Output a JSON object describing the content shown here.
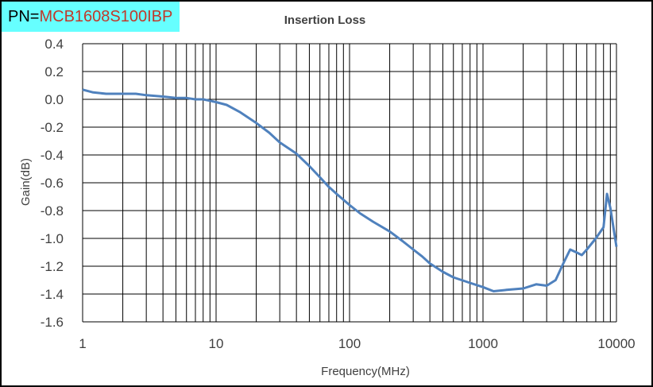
{
  "badge": {
    "prefix": "PN=",
    "value": "MCB1608S100IBP",
    "bg": "#66ffff",
    "value_color": "#c0392b"
  },
  "chart_data": {
    "type": "line",
    "title": "Insertion Loss",
    "xlabel": "Frequency(MHz)",
    "ylabel": "Gain(dB)",
    "x_scale": "log",
    "xlim": [
      1,
      10000
    ],
    "ylim": [
      -1.6,
      0.4
    ],
    "x_ticks": [
      1,
      10,
      100,
      1000,
      10000
    ],
    "x_tick_labels": [
      "1",
      "10",
      "100",
      "1000",
      "10000"
    ],
    "y_ticks": [
      0.4,
      0.2,
      0.0,
      -0.2,
      -0.4,
      -0.6,
      -0.8,
      -1.0,
      -1.2,
      -1.4,
      -1.6
    ],
    "y_tick_labels": [
      "0.4",
      "0.2",
      "0.0",
      "-0.2",
      "-0.4",
      "-0.6",
      "-0.8",
      "-1.0",
      "-1.2",
      "-1.4",
      "-1.6"
    ],
    "grid": true,
    "line_color": "#4f81bd",
    "series": [
      {
        "x": [
          1,
          1.2,
          1.5,
          2,
          2.5,
          3,
          4,
          5,
          6,
          7,
          8,
          9,
          10,
          12,
          15,
          20,
          25,
          30,
          40,
          50,
          60,
          70,
          80,
          100,
          120,
          150,
          200,
          250,
          300,
          350,
          400,
          500,
          600,
          800,
          1000,
          1200,
          1500,
          2000,
          2500,
          3000,
          3500,
          4000,
          4500,
          5000,
          5500,
          6000,
          7000,
          8000,
          8500,
          9000,
          10000
        ],
        "y": [
          0.07,
          0.05,
          0.04,
          0.04,
          0.04,
          0.03,
          0.02,
          0.01,
          0.01,
          0.0,
          0.0,
          -0.01,
          -0.02,
          -0.04,
          -0.09,
          -0.17,
          -0.24,
          -0.31,
          -0.39,
          -0.48,
          -0.56,
          -0.63,
          -0.68,
          -0.76,
          -0.82,
          -0.88,
          -0.95,
          -1.02,
          -1.08,
          -1.13,
          -1.18,
          -1.24,
          -1.28,
          -1.32,
          -1.35,
          -1.38,
          -1.37,
          -1.36,
          -1.33,
          -1.34,
          -1.3,
          -1.18,
          -1.08,
          -1.1,
          -1.12,
          -1.08,
          -1.0,
          -0.92,
          -0.68,
          -0.78,
          -1.06
        ]
      }
    ]
  }
}
